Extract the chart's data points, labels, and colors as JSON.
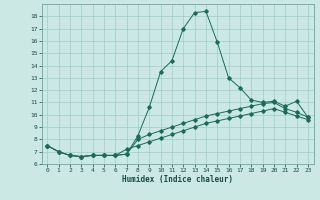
{
  "xlabel": "Humidex (Indice chaleur)",
  "background_color": "#cce8e5",
  "line_color": "#1a6b5a",
  "grid_color": "#9ecec8",
  "xlim": [
    -0.5,
    23.5
  ],
  "ylim": [
    6,
    19
  ],
  "yticks": [
    6,
    7,
    8,
    9,
    10,
    11,
    12,
    13,
    14,
    15,
    16,
    17,
    18
  ],
  "xticks": [
    0,
    1,
    2,
    3,
    4,
    5,
    6,
    7,
    8,
    9,
    10,
    11,
    12,
    13,
    14,
    15,
    16,
    17,
    18,
    19,
    20,
    21,
    22,
    23
  ],
  "series1_x": [
    0,
    1,
    2,
    3,
    4,
    5,
    6,
    7,
    8,
    9,
    10,
    11,
    12,
    13,
    14,
    15,
    16,
    17,
    18,
    19,
    20,
    21,
    22,
    23
  ],
  "series1_y": [
    7.5,
    7.0,
    6.7,
    6.6,
    6.7,
    6.7,
    6.7,
    6.8,
    8.3,
    10.6,
    13.5,
    14.4,
    17.0,
    18.3,
    18.4,
    15.9,
    13.0,
    12.2,
    11.2,
    11.0,
    11.1,
    10.7,
    11.1,
    9.8
  ],
  "series2_x": [
    0,
    1,
    2,
    3,
    4,
    5,
    6,
    7,
    8,
    9,
    10,
    11,
    12,
    13,
    14,
    15,
    16,
    17,
    18,
    19,
    20,
    21,
    22,
    23
  ],
  "series2_y": [
    7.5,
    7.0,
    6.7,
    6.6,
    6.7,
    6.7,
    6.7,
    6.8,
    8.0,
    8.4,
    8.7,
    9.0,
    9.3,
    9.6,
    9.9,
    10.1,
    10.3,
    10.5,
    10.7,
    10.9,
    11.0,
    10.5,
    10.2,
    9.8
  ],
  "series3_x": [
    0,
    1,
    2,
    3,
    4,
    5,
    6,
    7,
    8,
    9,
    10,
    11,
    12,
    13,
    14,
    15,
    16,
    17,
    18,
    19,
    20,
    21,
    22,
    23
  ],
  "series3_y": [
    7.5,
    7.0,
    6.7,
    6.6,
    6.7,
    6.7,
    6.7,
    7.2,
    7.5,
    7.8,
    8.1,
    8.4,
    8.7,
    9.0,
    9.3,
    9.5,
    9.7,
    9.9,
    10.1,
    10.3,
    10.5,
    10.2,
    9.9,
    9.6
  ]
}
